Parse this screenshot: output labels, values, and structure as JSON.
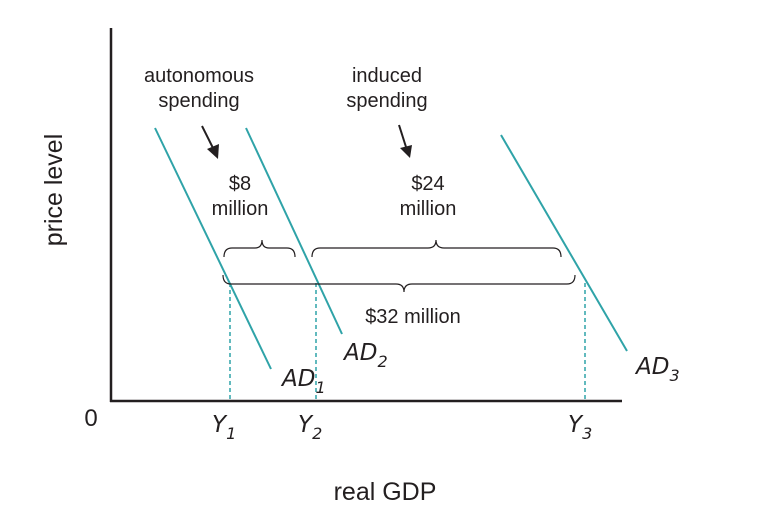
{
  "colors": {
    "curve": "#2fa3a8",
    "ink": "#231f20",
    "background": "#ffffff"
  },
  "axes": {
    "y_title": "price level",
    "x_title": "real GDP",
    "origin": "0"
  },
  "curves": [
    {
      "main": "AD",
      "sub": "1"
    },
    {
      "main": "AD",
      "sub": "2"
    },
    {
      "main": "AD",
      "sub": "3"
    }
  ],
  "x_ticks": [
    {
      "main": "Y",
      "sub": "1"
    },
    {
      "main": "Y",
      "sub": "2"
    },
    {
      "main": "Y",
      "sub": "3"
    }
  ],
  "annotations": {
    "autonomous": {
      "line1": "autonomous",
      "line2": "spending"
    },
    "induced": {
      "line1": "induced",
      "line2": "spending"
    },
    "autonomous_amount": {
      "line1": "$8",
      "line2": "million"
    },
    "induced_amount": {
      "line1": "$24",
      "line2": "million"
    },
    "total_amount": "$32 million"
  }
}
